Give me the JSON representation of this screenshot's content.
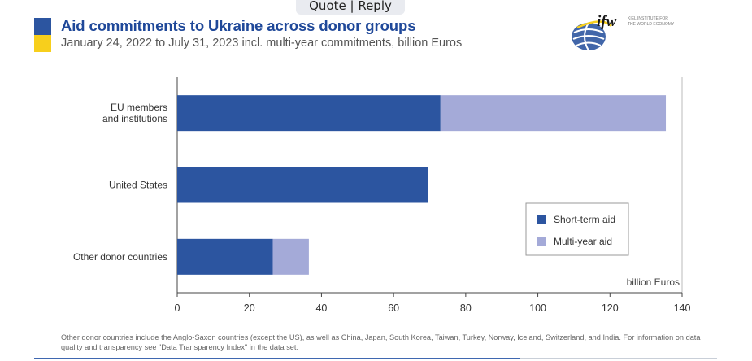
{
  "forum_bar": {
    "label": "Quote | Reply"
  },
  "header": {
    "title": "Aid commitments to Ukraine across donor groups",
    "subtitle": "January 24, 2022 to July 31, 2023 incl. multi-year commitments, billion Euros"
  },
  "logo": {
    "wordmark": "ifw",
    "line1": "KIEL INSTITUTE FOR",
    "line2": "THE WORLD ECONOMY"
  },
  "colors": {
    "short_term": "#2c55a0",
    "multi_year": "#a4aad8",
    "accent": "#1f4899",
    "flag_yellow": "#f7cf1c"
  },
  "chart_data": {
    "type": "bar",
    "orientation": "horizontal",
    "stacked": true,
    "categories": [
      "EU members\nand institutions",
      "United States",
      "Other donor countries"
    ],
    "series": [
      {
        "name": "Short-term aid",
        "values": [
          73,
          69.5,
          26.5
        ]
      },
      {
        "name": "Multi-year aid",
        "values": [
          62.5,
          0,
          10
        ]
      }
    ],
    "xlim": [
      0,
      140
    ],
    "xticks": [
      0,
      20,
      40,
      60,
      80,
      100,
      120,
      140
    ],
    "xlabel": "billion Euros",
    "legend_position": "lower-right",
    "grid": false
  },
  "footnote": "Other donor countries include the Anglo-Saxon countries (except the US), as well as China, Japan, South Korea, Taiwan, Turkey, Norway, Iceland, Switzerland, and India. For information on data quality and transparency see \"Data Transparency Index\" in the data set."
}
